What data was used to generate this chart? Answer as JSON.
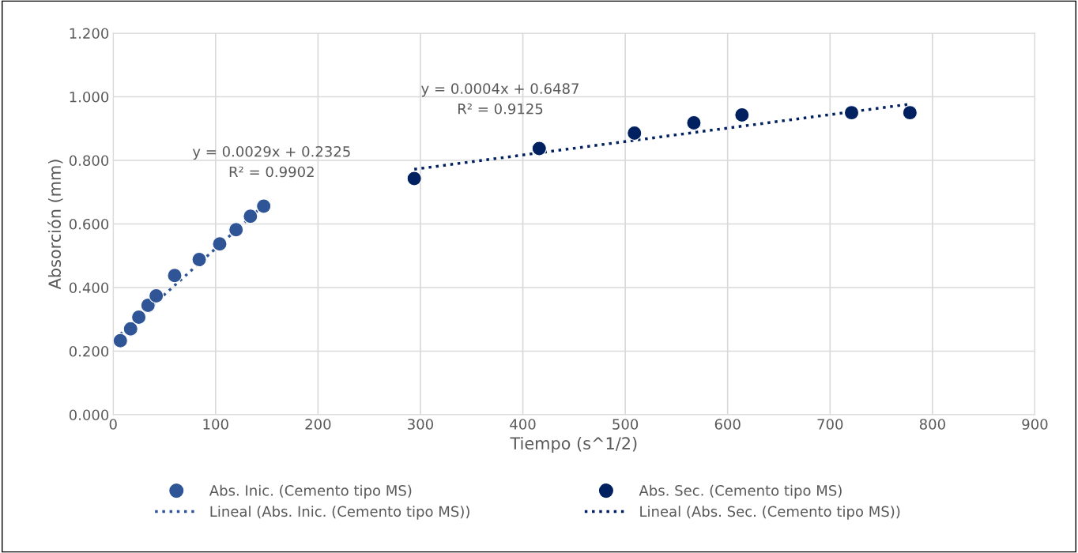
{
  "chart_data": {
    "type": "scatter",
    "xlabel": "Tiempo (s^1/2)",
    "ylabel": "Absorción (mm)",
    "xlim": [
      0,
      900
    ],
    "xticks": [
      0,
      100,
      200,
      300,
      400,
      500,
      600,
      700,
      800,
      900
    ],
    "ylim": [
      0,
      1.2
    ],
    "yticks": [
      {
        "value": 0,
        "label": "0.000"
      },
      {
        "value": 0.2,
        "label": "0.200"
      },
      {
        "value": 0.4,
        "label": "0.400"
      },
      {
        "value": 0.6,
        "label": "0.600"
      },
      {
        "value": 0.8,
        "label": "0.800"
      },
      {
        "value": 1.0,
        "label": "1.000"
      },
      {
        "value": 1.2,
        "label": "1.200"
      }
    ],
    "grid": true,
    "legend": "bottom",
    "series": [
      {
        "name": "Abs. Inic. (Cemento tipo MS)",
        "marker": "circle",
        "color": "#2f5597",
        "x": [
          7,
          17,
          25,
          34,
          42,
          60,
          84,
          104,
          120,
          134,
          147
        ],
        "values": [
          0.233,
          0.27,
          0.307,
          0.344,
          0.374,
          0.438,
          0.488,
          0.537,
          0.582,
          0.624,
          0.656
        ]
      },
      {
        "name": "Lineal (Abs. Inic. (Cemento tipo MS))",
        "type": "line",
        "line_style": "dotted",
        "color": "#2f5597",
        "x": [
          7,
          147
        ],
        "values": [
          0.253,
          0.659
        ]
      },
      {
        "name": "Abs. Sec. (Cemento tipo MS)",
        "marker": "circle",
        "color": "#002060",
        "x": [
          294,
          416,
          509,
          567,
          614,
          721,
          778
        ],
        "values": [
          0.743,
          0.837,
          0.886,
          0.918,
          0.943,
          0.95,
          0.95
        ]
      },
      {
        "name": "Lineal (Abs. Sec. (Cemento tipo MS))",
        "type": "line",
        "line_style": "dotted",
        "color": "#002060",
        "x": [
          294,
          778
        ],
        "values": [
          0.772,
          0.977
        ]
      }
    ],
    "annotations": [
      "y = 0.0029x + 0.2325\nR² = 0.9902",
      "y = 0.0004x + 0.6487\nR² = 0.9125"
    ]
  }
}
